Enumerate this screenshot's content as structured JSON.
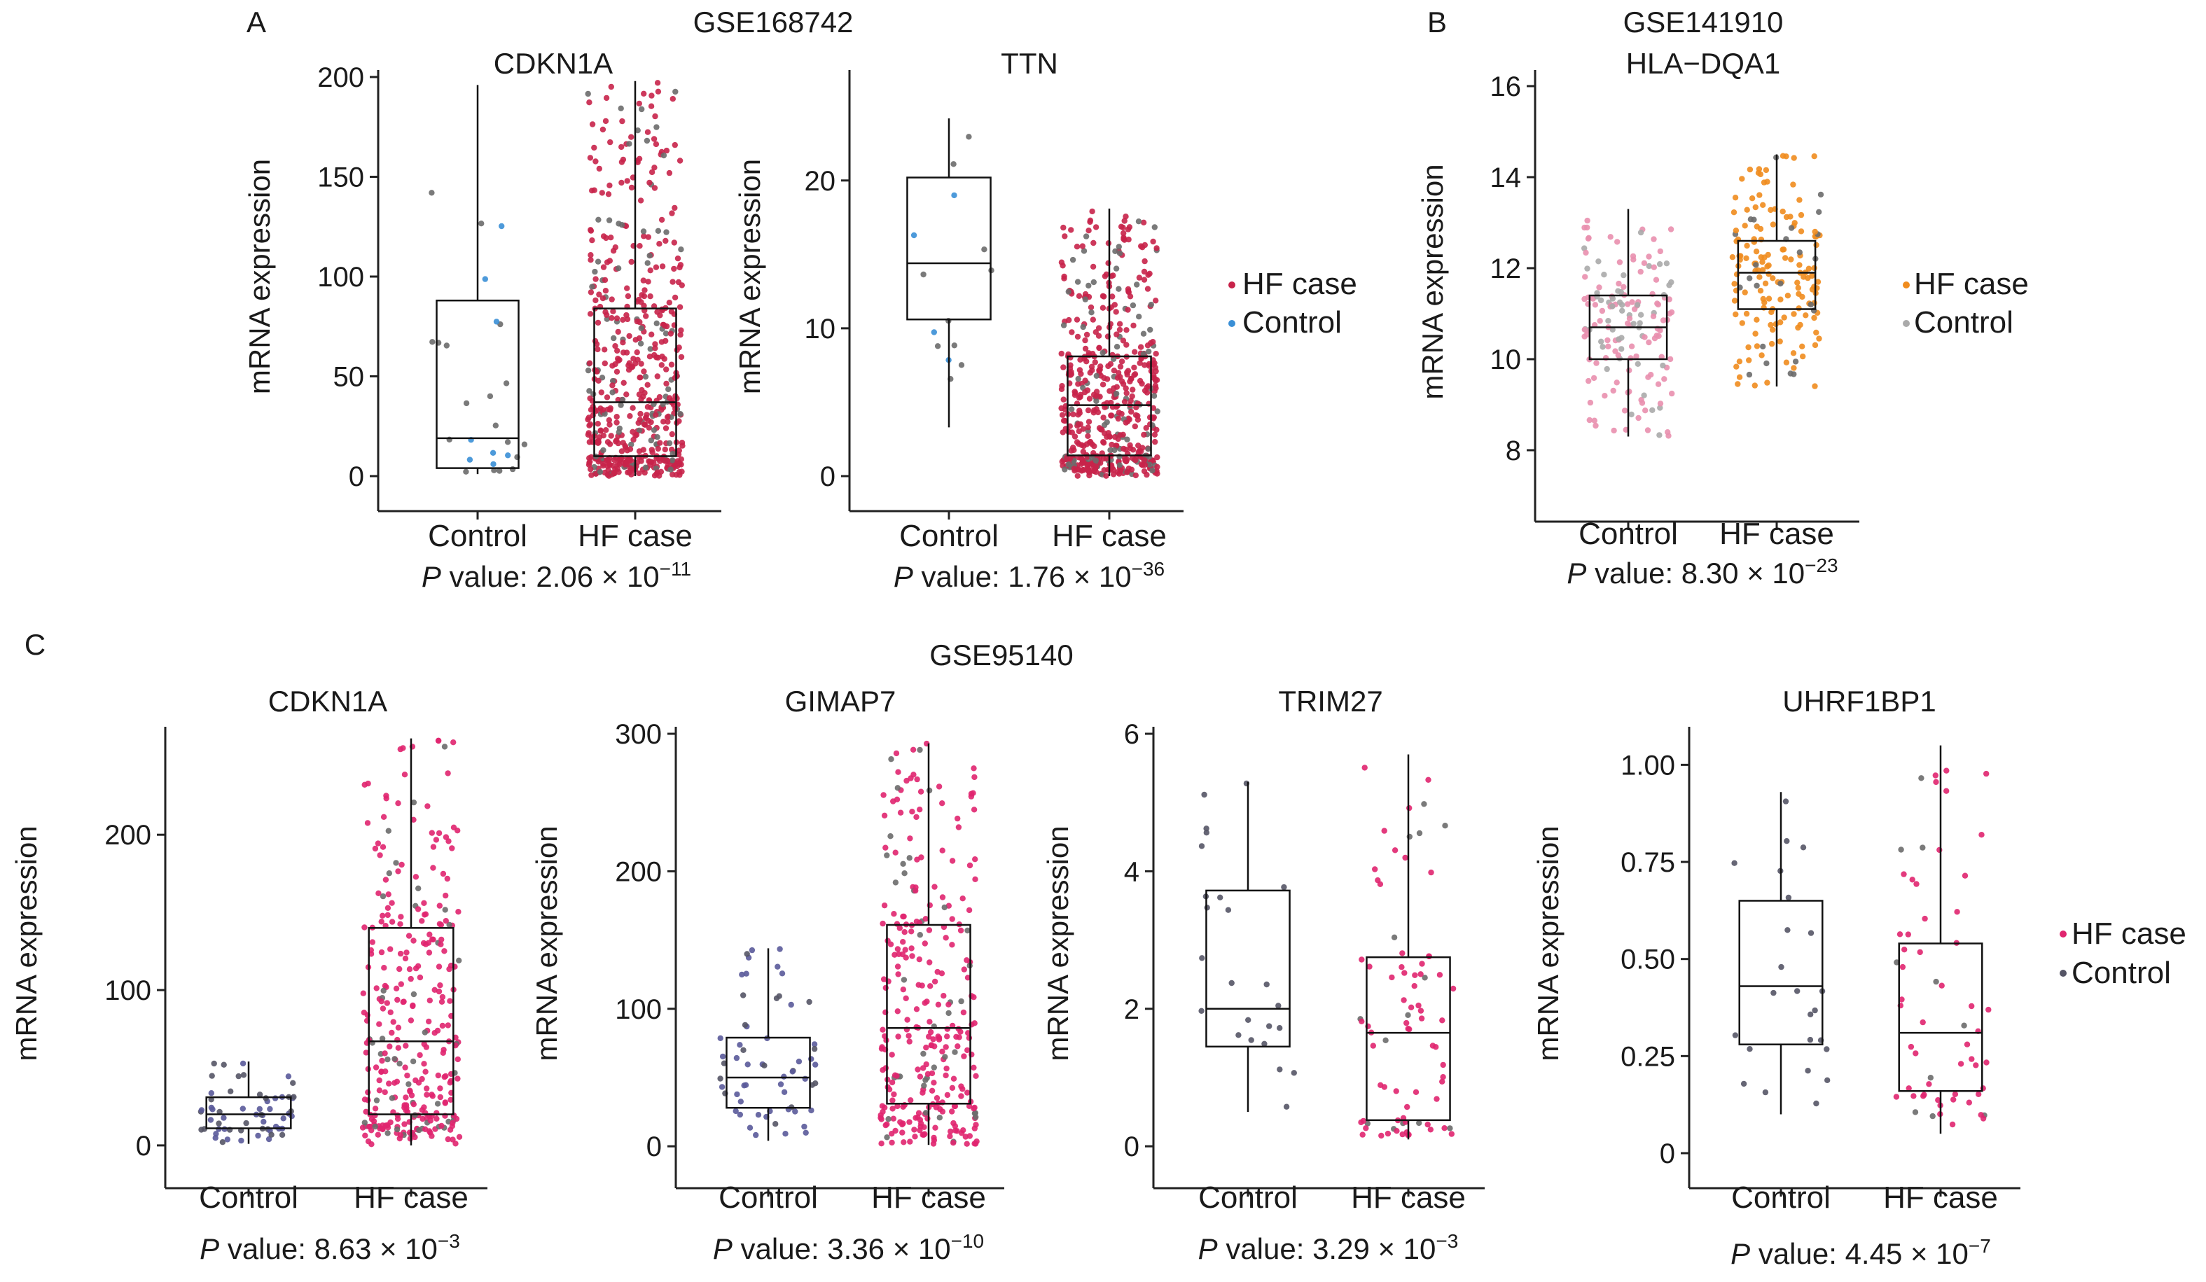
{
  "panels": [
    {
      "letter": "A",
      "dataset": "GSE168742",
      "legend": [
        {
          "label": "HF case",
          "color": "#c8234a"
        },
        {
          "label": "Control",
          "color": "#3a8fd6"
        }
      ],
      "plots": [
        {
          "gene": "CDKN1A",
          "ylabel": "mRNA expression",
          "ylim": [
            0,
            200
          ],
          "yticks": [
            0,
            50,
            100,
            150,
            200
          ],
          "categories": [
            "Control",
            "HF case"
          ],
          "pvalue": {
            "prefix": "P",
            "text": " value: 2.06 × 10",
            "exp": "−11"
          },
          "boxes": [
            {
              "q1": 4,
              "median": 19,
              "q3": 88,
              "lo": 1,
              "hi": 196,
              "n": 26,
              "color": "#6b6b6b"
            },
            {
              "q1": 10,
              "median": 37,
              "q3": 84,
              "lo": 0,
              "hi": 198,
              "n": 560,
              "color": "#c8234a"
            }
          ]
        },
        {
          "gene": "TTN",
          "ylabel": "mRNA expression",
          "ylim": [
            0,
            27
          ],
          "yticks": [
            0,
            10,
            20
          ],
          "categories": [
            "Control",
            "HF case"
          ],
          "pvalue": {
            "prefix": "P",
            "text": " value: 1.76 × 10",
            "exp": "−36"
          },
          "boxes": [
            {
              "q1": 10.6,
              "median": 14.4,
              "q3": 20.2,
              "lo": 3.3,
              "hi": 24.2,
              "n": 14,
              "color": "#6b6b6b"
            },
            {
              "q1": 1.4,
              "median": 4.8,
              "q3": 8.1,
              "lo": 0,
              "hi": 18.1,
              "n": 560,
              "color": "#c8234a"
            }
          ]
        }
      ]
    },
    {
      "letter": "B",
      "dataset": "GSE141910",
      "legend": [
        {
          "label": "HF case",
          "color": "#f08c1e"
        },
        {
          "label": "Control",
          "color": "#aaaaaa"
        }
      ],
      "plots": [
        {
          "gene": "HLA−DQA1",
          "ylabel": "mRNA expression",
          "ylim": [
            7.2,
            16.2
          ],
          "yticks": [
            8,
            10,
            12,
            14,
            16
          ],
          "categories": [
            "Control",
            "HF case"
          ],
          "pvalue": {
            "prefix": "P",
            "text": " value: 8.30 × 10",
            "exp": "−23"
          },
          "boxes": [
            {
              "q1": 10.0,
              "median": 10.7,
              "q3": 11.4,
              "lo": 8.3,
              "hi": 13.3,
              "n": 160,
              "color": "#e98fae"
            },
            {
              "q1": 11.1,
              "median": 11.9,
              "q3": 12.6,
              "lo": 9.4,
              "hi": 14.5,
              "n": 170,
              "color": "#f08c1e"
            }
          ]
        }
      ]
    },
    {
      "letter": "C",
      "dataset": "GSE95140",
      "legend": [
        {
          "label": "HF case",
          "color": "#e0256f"
        },
        {
          "label": "Control",
          "color": "#555566"
        }
      ],
      "plots": [
        {
          "gene": "CDKN1A",
          "ylabel": "mRNA expression",
          "ylim": [
            -5,
            265
          ],
          "yticks": [
            0,
            100,
            200
          ],
          "categories": [
            "Control",
            "HF case"
          ],
          "pvalue": {
            "prefix": "P",
            "text": " value: 8.63 × 10",
            "exp": "−3"
          },
          "boxes": [
            {
              "q1": 11,
              "median": 20,
              "q3": 31,
              "lo": 1,
              "hi": 54,
              "n": 60,
              "color": "#5a5a9a"
            },
            {
              "q1": 20,
              "median": 67,
              "q3": 140,
              "lo": 0,
              "hi": 262,
              "n": 320,
              "color": "#e0256f"
            }
          ]
        },
        {
          "gene": "GIMAP7",
          "ylabel": "mRNA expression",
          "ylim": [
            -5,
            300
          ],
          "yticks": [
            0,
            100,
            200,
            300
          ],
          "categories": [
            "Control",
            "HF case"
          ],
          "pvalue": {
            "prefix": "P",
            "text": " value: 3.36 × 10",
            "exp": "−10"
          },
          "boxes": [
            {
              "q1": 28,
              "median": 50,
              "q3": 79,
              "lo": 4,
              "hi": 144,
              "n": 60,
              "color": "#5a5a9a"
            },
            {
              "q1": 31,
              "median": 86,
              "q3": 161,
              "lo": 1,
              "hi": 293,
              "n": 300,
              "color": "#e0256f"
            }
          ]
        },
        {
          "gene": "TRIM27",
          "ylabel": "mRNA expression",
          "ylim": [
            -0.1,
            6.0
          ],
          "yticks": [
            0,
            2,
            4,
            6
          ],
          "categories": [
            "Control",
            "HF case"
          ],
          "pvalue": {
            "prefix": "P",
            "text": " value: 3.29 × 10",
            "exp": "−3"
          },
          "boxes": [
            {
              "q1": 1.45,
              "median": 2.0,
              "q3": 3.72,
              "lo": 0.5,
              "hi": 5.3,
              "n": 24,
              "color": "#555566"
            },
            {
              "q1": 0.38,
              "median": 1.65,
              "q3": 2.75,
              "lo": 0.1,
              "hi": 5.7,
              "n": 80,
              "color": "#e0256f"
            }
          ]
        },
        {
          "gene": "UHRF1BP1",
          "ylabel": "mRNA expression",
          "ylim": [
            0,
            1.08
          ],
          "yticks": [
            0,
            0.25,
            0.5,
            0.75,
            1.0
          ],
          "ytickLabels": [
            "0",
            "0.25",
            "0.50",
            "0.75",
            "1.00"
          ],
          "categories": [
            "Control",
            "HF case"
          ],
          "pvalue": {
            "prefix": "P",
            "text": " value: 4.45 × 10",
            "exp": "−7"
          },
          "boxes": [
            {
              "q1": 0.28,
              "median": 0.43,
              "q3": 0.65,
              "lo": 0.1,
              "hi": 0.93,
              "n": 24,
              "color": "#555566"
            },
            {
              "q1": 0.16,
              "median": 0.31,
              "q3": 0.54,
              "lo": 0.05,
              "hi": 1.05,
              "n": 60,
              "color": "#e0256f"
            }
          ]
        }
      ]
    }
  ],
  "chart_data": [
    {
      "type": "box",
      "title": "CDKN1A",
      "dataset": "GSE168742",
      "categories": [
        "Control",
        "HF case"
      ],
      "ylabel": "mRNA expression",
      "ylim": [
        0,
        200
      ],
      "series": [
        {
          "name": "Control",
          "q1": 4,
          "median": 19,
          "q3": 88,
          "min": 1,
          "max": 196
        },
        {
          "name": "HF case",
          "q1": 10,
          "median": 37,
          "q3": 84,
          "min": 0,
          "max": 198
        }
      ],
      "pvalue": "2.06 × 10^−11"
    },
    {
      "type": "box",
      "title": "TTN",
      "dataset": "GSE168742",
      "categories": [
        "Control",
        "HF case"
      ],
      "ylabel": "mRNA expression",
      "ylim": [
        0,
        27
      ],
      "series": [
        {
          "name": "Control",
          "q1": 10.6,
          "median": 14.4,
          "q3": 20.2,
          "min": 3.3,
          "max": 24.2
        },
        {
          "name": "HF case",
          "q1": 1.4,
          "median": 4.8,
          "q3": 8.1,
          "min": 0,
          "max": 18.1
        }
      ],
      "pvalue": "1.76 × 10^−36"
    },
    {
      "type": "box",
      "title": "HLA−DQA1",
      "dataset": "GSE141910",
      "categories": [
        "Control",
        "HF case"
      ],
      "ylabel": "mRNA expression",
      "ylim": [
        7.2,
        16.2
      ],
      "series": [
        {
          "name": "Control",
          "q1": 10.0,
          "median": 10.7,
          "q3": 11.4,
          "min": 8.3,
          "max": 13.3
        },
        {
          "name": "HF case",
          "q1": 11.1,
          "median": 11.9,
          "q3": 12.6,
          "min": 9.4,
          "max": 14.5
        }
      ],
      "pvalue": "8.30 × 10^−23"
    },
    {
      "type": "box",
      "title": "CDKN1A",
      "dataset": "GSE95140",
      "categories": [
        "Control",
        "HF case"
      ],
      "ylabel": "mRNA expression",
      "ylim": [
        0,
        265
      ],
      "series": [
        {
          "name": "Control",
          "q1": 11,
          "median": 20,
          "q3": 31,
          "min": 1,
          "max": 54
        },
        {
          "name": "HF case",
          "q1": 20,
          "median": 67,
          "q3": 140,
          "min": 0,
          "max": 262
        }
      ],
      "pvalue": "8.63 × 10^−3"
    },
    {
      "type": "box",
      "title": "GIMAP7",
      "dataset": "GSE95140",
      "categories": [
        "Control",
        "HF case"
      ],
      "ylabel": "mRNA expression",
      "ylim": [
        0,
        300
      ],
      "series": [
        {
          "name": "Control",
          "q1": 28,
          "median": 50,
          "q3": 79,
          "min": 4,
          "max": 144
        },
        {
          "name": "HF case",
          "q1": 31,
          "median": 86,
          "q3": 161,
          "min": 1,
          "max": 293
        }
      ],
      "pvalue": "3.36 × 10^−10"
    },
    {
      "type": "box",
      "title": "TRIM27",
      "dataset": "GSE95140",
      "categories": [
        "Control",
        "HF case"
      ],
      "ylabel": "mRNA expression",
      "ylim": [
        0,
        6
      ],
      "series": [
        {
          "name": "Control",
          "q1": 1.45,
          "median": 2.0,
          "q3": 3.72,
          "min": 0.5,
          "max": 5.3
        },
        {
          "name": "HF case",
          "q1": 0.38,
          "median": 1.65,
          "q3": 2.75,
          "min": 0.1,
          "max": 5.7
        }
      ],
      "pvalue": "3.29 × 10^−3"
    },
    {
      "type": "box",
      "title": "UHRF1BP1",
      "dataset": "GSE95140",
      "categories": [
        "Control",
        "HF case"
      ],
      "ylabel": "mRNA expression",
      "ylim": [
        0,
        1.08
      ],
      "series": [
        {
          "name": "Control",
          "q1": 0.28,
          "median": 0.43,
          "q3": 0.65,
          "min": 0.1,
          "max": 0.93
        },
        {
          "name": "HF case",
          "q1": 0.16,
          "median": 0.31,
          "q3": 0.54,
          "min": 0.05,
          "max": 1.05
        }
      ],
      "pvalue": "4.45 × 10^−7"
    }
  ]
}
